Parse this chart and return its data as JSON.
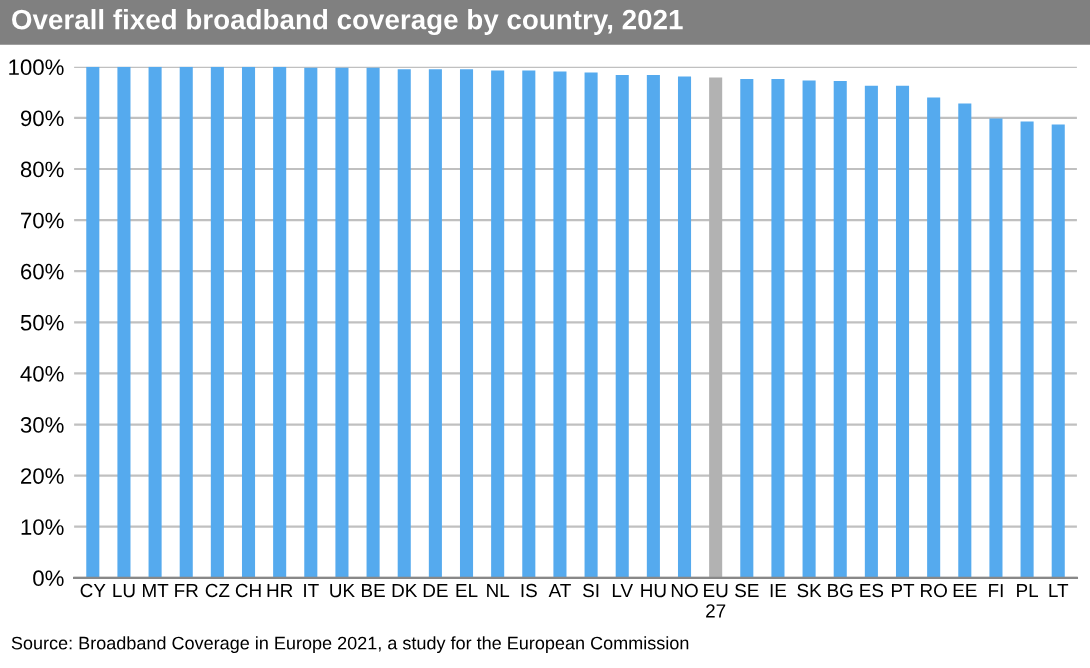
{
  "chart_data": {
    "type": "bar",
    "title": "Overall fixed broadband coverage by country, 2021",
    "categories": [
      "CY",
      "LU",
      "MT",
      "FR",
      "CZ",
      "CH",
      "HR",
      "IT",
      "UK",
      "BE",
      "DK",
      "DE",
      "EL",
      "NL",
      "IS",
      "AT",
      "SI",
      "LV",
      "HU",
      "NO",
      "EU\n27",
      "SE",
      "IE",
      "SK",
      "BG",
      "ES",
      "PT",
      "RO",
      "EE",
      "FI",
      "PL",
      "LT"
    ],
    "values": [
      100,
      100,
      100,
      100,
      100,
      100,
      100,
      99.8,
      99.8,
      99.8,
      99.5,
      99.5,
      99.5,
      99.3,
      99.3,
      99.1,
      98.9,
      98.4,
      98.4,
      98.1,
      97.9,
      97.6,
      97.6,
      97.3,
      97.2,
      96.3,
      96.3,
      94.0,
      92.8,
      89.9,
      89.3,
      88.7
    ],
    "colors": [
      "#55aaee",
      "#55aaee",
      "#55aaee",
      "#55aaee",
      "#55aaee",
      "#55aaee",
      "#55aaee",
      "#55aaee",
      "#55aaee",
      "#55aaee",
      "#55aaee",
      "#55aaee",
      "#55aaee",
      "#55aaee",
      "#55aaee",
      "#55aaee",
      "#55aaee",
      "#55aaee",
      "#55aaee",
      "#55aaee",
      "#b2b2b2",
      "#55aaee",
      "#55aaee",
      "#55aaee",
      "#55aaee",
      "#55aaee",
      "#55aaee",
      "#55aaee",
      "#55aaee",
      "#55aaee",
      "#55aaee",
      "#55aaee"
    ],
    "ylim": [
      0,
      100
    ],
    "yticks": [
      {
        "value": 0,
        "label": "0%"
      },
      {
        "value": 10,
        "label": "10%"
      },
      {
        "value": 20,
        "label": "20%"
      },
      {
        "value": 30,
        "label": "30%"
      },
      {
        "value": 40,
        "label": "40%"
      },
      {
        "value": 50,
        "label": "50%"
      },
      {
        "value": 60,
        "label": "60%"
      },
      {
        "value": 70,
        "label": "70%"
      },
      {
        "value": 80,
        "label": "80%"
      },
      {
        "value": 90,
        "label": "90%"
      },
      {
        "value": 100,
        "label": "100%"
      }
    ],
    "grid": "y",
    "annotations": [
      "Source: Broadband Coverage in Europe 2021, a study for the European Commission"
    ]
  }
}
